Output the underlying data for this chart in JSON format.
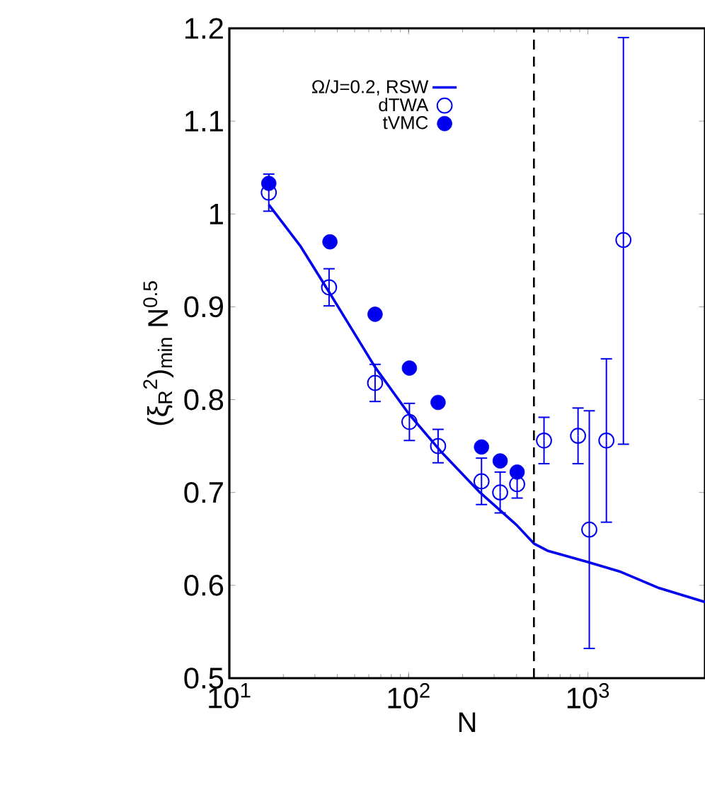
{
  "chart_data": {
    "type": "scatter",
    "xlabel": "N",
    "ylabel": "(ξ$_{R}$$^{2}$)$_{min}$ N$^{0.5}$",
    "log": "x",
    "xlim": [
      10,
      4500
    ],
    "ylim": [
      0.5,
      1.2
    ],
    "xticks": [
      {
        "value": 10,
        "label": "10$^{1}$"
      },
      {
        "value": 100,
        "label": "10$^{2}$"
      },
      {
        "value": 1000,
        "label": "10$^{3}$"
      }
    ],
    "yticks": [
      0.5,
      0.6,
      0.7,
      0.8,
      0.9,
      1,
      1.1,
      1.2
    ],
    "legend": "top left",
    "grid": false,
    "ref_lines": [
      {
        "axis": "x",
        "value": 500,
        "color": "#000000",
        "line_style": "dashed"
      }
    ],
    "series": [
      {
        "name": "Ω/J=0.2, RSW",
        "type": "line",
        "marker": "none",
        "color": "#0000ee",
        "x": [
          16.6,
          25,
          36,
          65,
          100,
          150,
          250,
          400,
          500,
          600,
          1000,
          1500,
          2500,
          4500
        ],
        "values": [
          1.01,
          0.965,
          0.916,
          0.835,
          0.785,
          0.745,
          0.7,
          0.665,
          0.645,
          0.637,
          0.625,
          0.615,
          0.597,
          0.582
        ]
      },
      {
        "name": "dTWA",
        "marker": "circle",
        "color": "#0000ee",
        "x": [
          16.6,
          36,
          65,
          101,
          146,
          255,
          324,
          403,
          569,
          881,
          1018,
          1268,
          1578
        ],
        "values": [
          1.023,
          0.921,
          0.818,
          0.776,
          0.75,
          0.712,
          0.7,
          0.709,
          0.756,
          0.761,
          0.66,
          0.756,
          0.972
        ],
        "errors": [
          0.02,
          0.02,
          0.02,
          0.02,
          0.018,
          0.025,
          0.022,
          0.015,
          0.025,
          0.03,
          0.128,
          0.088,
          [
            0.752,
            1.19
          ]
        ]
      },
      {
        "name": "tVMC",
        "marker": "circle",
        "color": "#0000ee",
        "x": [
          16.6,
          36.4,
          65,
          101,
          146,
          255,
          324,
          403
        ],
        "values": [
          1.033,
          0.97,
          0.892,
          0.834,
          0.797,
          0.749,
          0.734,
          0.722
        ]
      }
    ]
  }
}
